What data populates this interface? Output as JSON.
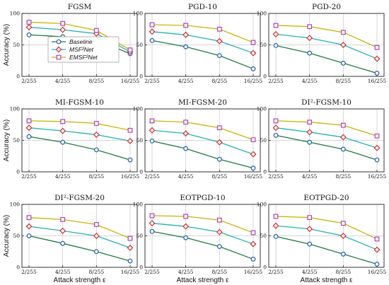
{
  "figure": {
    "ylabel": "Accuracy (%)",
    "xlabel": "Attack strength ε"
  },
  "chart_data": [
    {
      "type": "line",
      "title": "FGSM",
      "x": [
        "2/255",
        "4/255",
        "8/255",
        "16/255"
      ],
      "ylim": [
        0,
        100
      ],
      "yticks": [
        0,
        50,
        100
      ],
      "grid": true,
      "series": [
        {
          "name": "Baseline",
          "values": [
            66,
            63,
            58,
            36
          ]
        },
        {
          "name": "MSF²Net",
          "values": [
            78,
            74,
            68,
            39
          ]
        },
        {
          "name": "EMSF²Net",
          "values": [
            86,
            84,
            73,
            42
          ]
        }
      ]
    },
    {
      "type": "line",
      "title": "PGD-10",
      "x": [
        "2/255",
        "4/255",
        "8/255",
        "16/255"
      ],
      "ylim": [
        0,
        100
      ],
      "yticks": [
        0,
        50,
        100
      ],
      "grid": true,
      "series": [
        {
          "name": "Baseline",
          "values": [
            57,
            47,
            33,
            12
          ]
        },
        {
          "name": "MSF²Net",
          "values": [
            71,
            66,
            56,
            37
          ]
        },
        {
          "name": "EMSF²Net",
          "values": [
            82,
            81,
            75,
            54
          ]
        }
      ]
    },
    {
      "type": "line",
      "title": "PGD-20",
      "x": [
        "2/255",
        "4/255",
        "8/255",
        "16/255"
      ],
      "ylim": [
        0,
        100
      ],
      "yticks": [
        0,
        50,
        100
      ],
      "grid": true,
      "series": [
        {
          "name": "Baseline",
          "values": [
            49,
            37,
            21,
            5
          ]
        },
        {
          "name": "MSF²Net",
          "values": [
            67,
            61,
            50,
            28
          ]
        },
        {
          "name": "EMSF²Net",
          "values": [
            81,
            79,
            70,
            46
          ]
        }
      ]
    },
    {
      "type": "line",
      "title": "MI-FGSM-10",
      "x": [
        "2/255",
        "4/255",
        "8/255",
        "16/255"
      ],
      "ylim": [
        0,
        100
      ],
      "yticks": [
        0,
        50,
        100
      ],
      "grid": true,
      "series": [
        {
          "name": "Baseline",
          "values": [
            56,
            47,
            35,
            19
          ]
        },
        {
          "name": "MSF²Net",
          "values": [
            70,
            65,
            59,
            49
          ]
        },
        {
          "name": "EMSF²Net",
          "values": [
            81,
            80,
            77,
            66
          ]
        }
      ]
    },
    {
      "type": "line",
      "title": "MI-FGSM-20",
      "x": [
        "2/255",
        "4/255",
        "8/255",
        "16/255"
      ],
      "ylim": [
        0,
        100
      ],
      "yticks": [
        0,
        50,
        100
      ],
      "grid": true,
      "series": [
        {
          "name": "Baseline",
          "values": [
            49,
            37,
            20,
            6
          ]
        },
        {
          "name": "MSF²Net",
          "values": [
            66,
            61,
            47,
            28
          ]
        },
        {
          "name": "EMSF²Net",
          "values": [
            81,
            79,
            70,
            51
          ]
        }
      ]
    },
    {
      "type": "line",
      "title": "DI²-FGSM-10",
      "x": [
        "2/255",
        "4/255",
        "8/255",
        "16/255"
      ],
      "ylim": [
        0,
        100
      ],
      "yticks": [
        0,
        50,
        100
      ],
      "grid": true,
      "series": [
        {
          "name": "Baseline",
          "values": [
            58,
            47,
            36,
            19
          ]
        },
        {
          "name": "MSF²Net",
          "values": [
            70,
            63,
            55,
            38
          ]
        },
        {
          "name": "EMSF²Net",
          "values": [
            81,
            79,
            74,
            57
          ]
        }
      ]
    },
    {
      "type": "line",
      "title": "DI²-FGSM-20",
      "x": [
        "2/255",
        "4/255",
        "8/255",
        "16/255"
      ],
      "ylim": [
        0,
        100
      ],
      "yticks": [
        0,
        50,
        100
      ],
      "grid": true,
      "series": [
        {
          "name": "Baseline",
          "values": [
            50,
            38,
            25,
            10
          ]
        },
        {
          "name": "MSF²Net",
          "values": [
            65,
            58,
            50,
            31
          ]
        },
        {
          "name": "EMSF²Net",
          "values": [
            79,
            76,
            68,
            46
          ]
        }
      ]
    },
    {
      "type": "line",
      "title": "EOTPGD-10",
      "x": [
        "2/255",
        "4/255",
        "8/255",
        "16/255"
      ],
      "ylim": [
        0,
        100
      ],
      "yticks": [
        0,
        50,
        100
      ],
      "grid": true,
      "series": [
        {
          "name": "Baseline",
          "values": [
            57,
            47,
            33,
            13
          ]
        },
        {
          "name": "MSF²Net",
          "values": [
            70,
            65,
            56,
            37
          ]
        },
        {
          "name": "EMSF²Net",
          "values": [
            82,
            81,
            75,
            55
          ]
        }
      ]
    },
    {
      "type": "line",
      "title": "EOTPGD-20",
      "x": [
        "2/255",
        "4/255",
        "8/255",
        "16/255"
      ],
      "ylim": [
        0,
        100
      ],
      "yticks": [
        0,
        50,
        100
      ],
      "grid": true,
      "series": [
        {
          "name": "Baseline",
          "values": [
            49,
            37,
            21,
            5
          ]
        },
        {
          "name": "MSF²Net",
          "values": [
            66,
            61,
            50,
            28
          ]
        },
        {
          "name": "EMSF²Net",
          "values": [
            81,
            79,
            70,
            45
          ]
        }
      ]
    }
  ],
  "legend": {
    "entries": [
      "Baseline",
      "MSF²Net",
      "EMSF²Net"
    ]
  },
  "series_style": [
    {
      "name": "Baseline",
      "color": "#1f7a3f",
      "marker": "circle",
      "marker_color": "#1f5fa6"
    },
    {
      "name": "MSF²Net",
      "color": "#1fb3b8",
      "marker": "diamond",
      "marker_color": "#d62a2a"
    },
    {
      "name": "EMSF²Net",
      "color": "#c8b400",
      "marker": "square",
      "marker_color": "#b040b0"
    }
  ]
}
